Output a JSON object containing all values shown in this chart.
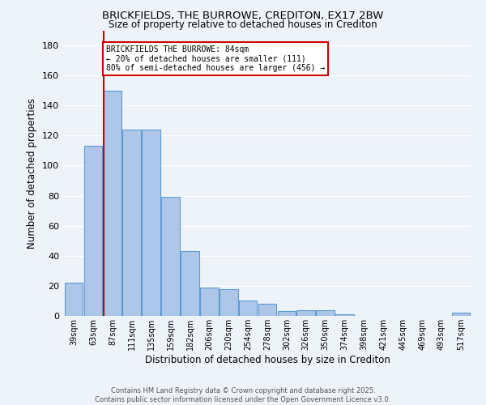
{
  "title1": "BRICKFIELDS, THE BURROWE, CREDITON, EX17 2BW",
  "title2": "Size of property relative to detached houses in Crediton",
  "xlabel": "Distribution of detached houses by size in Crediton",
  "ylabel": "Number of detached properties",
  "categories": [
    "39sqm",
    "63sqm",
    "87sqm",
    "111sqm",
    "135sqm",
    "159sqm",
    "182sqm",
    "206sqm",
    "230sqm",
    "254sqm",
    "278sqm",
    "302sqm",
    "326sqm",
    "350sqm",
    "374sqm",
    "398sqm",
    "421sqm",
    "445sqm",
    "469sqm",
    "493sqm",
    "517sqm"
  ],
  "values": [
    22,
    113,
    150,
    124,
    124,
    79,
    43,
    19,
    18,
    10,
    8,
    3,
    4,
    4,
    1,
    0,
    0,
    0,
    0,
    0,
    2
  ],
  "bar_color": "#aec6e8",
  "bar_edge_color": "#5b9bd5",
  "red_line_index": 2,
  "annotation_text": "BRICKFIELDS THE BURROWE: 84sqm\n← 20% of detached houses are smaller (111)\n80% of semi-detached houses are larger (456) →",
  "annotation_box_color": "#ffffff",
  "annotation_border_color": "#cc0000",
  "background_color": "#eef3fa",
  "grid_color": "#ffffff",
  "footer_text": "Contains HM Land Registry data © Crown copyright and database right 2025.\nContains public sector information licensed under the Open Government Licence v3.0.",
  "ylim": [
    0,
    190
  ],
  "yticks": [
    0,
    20,
    40,
    60,
    80,
    100,
    120,
    140,
    160,
    180
  ]
}
